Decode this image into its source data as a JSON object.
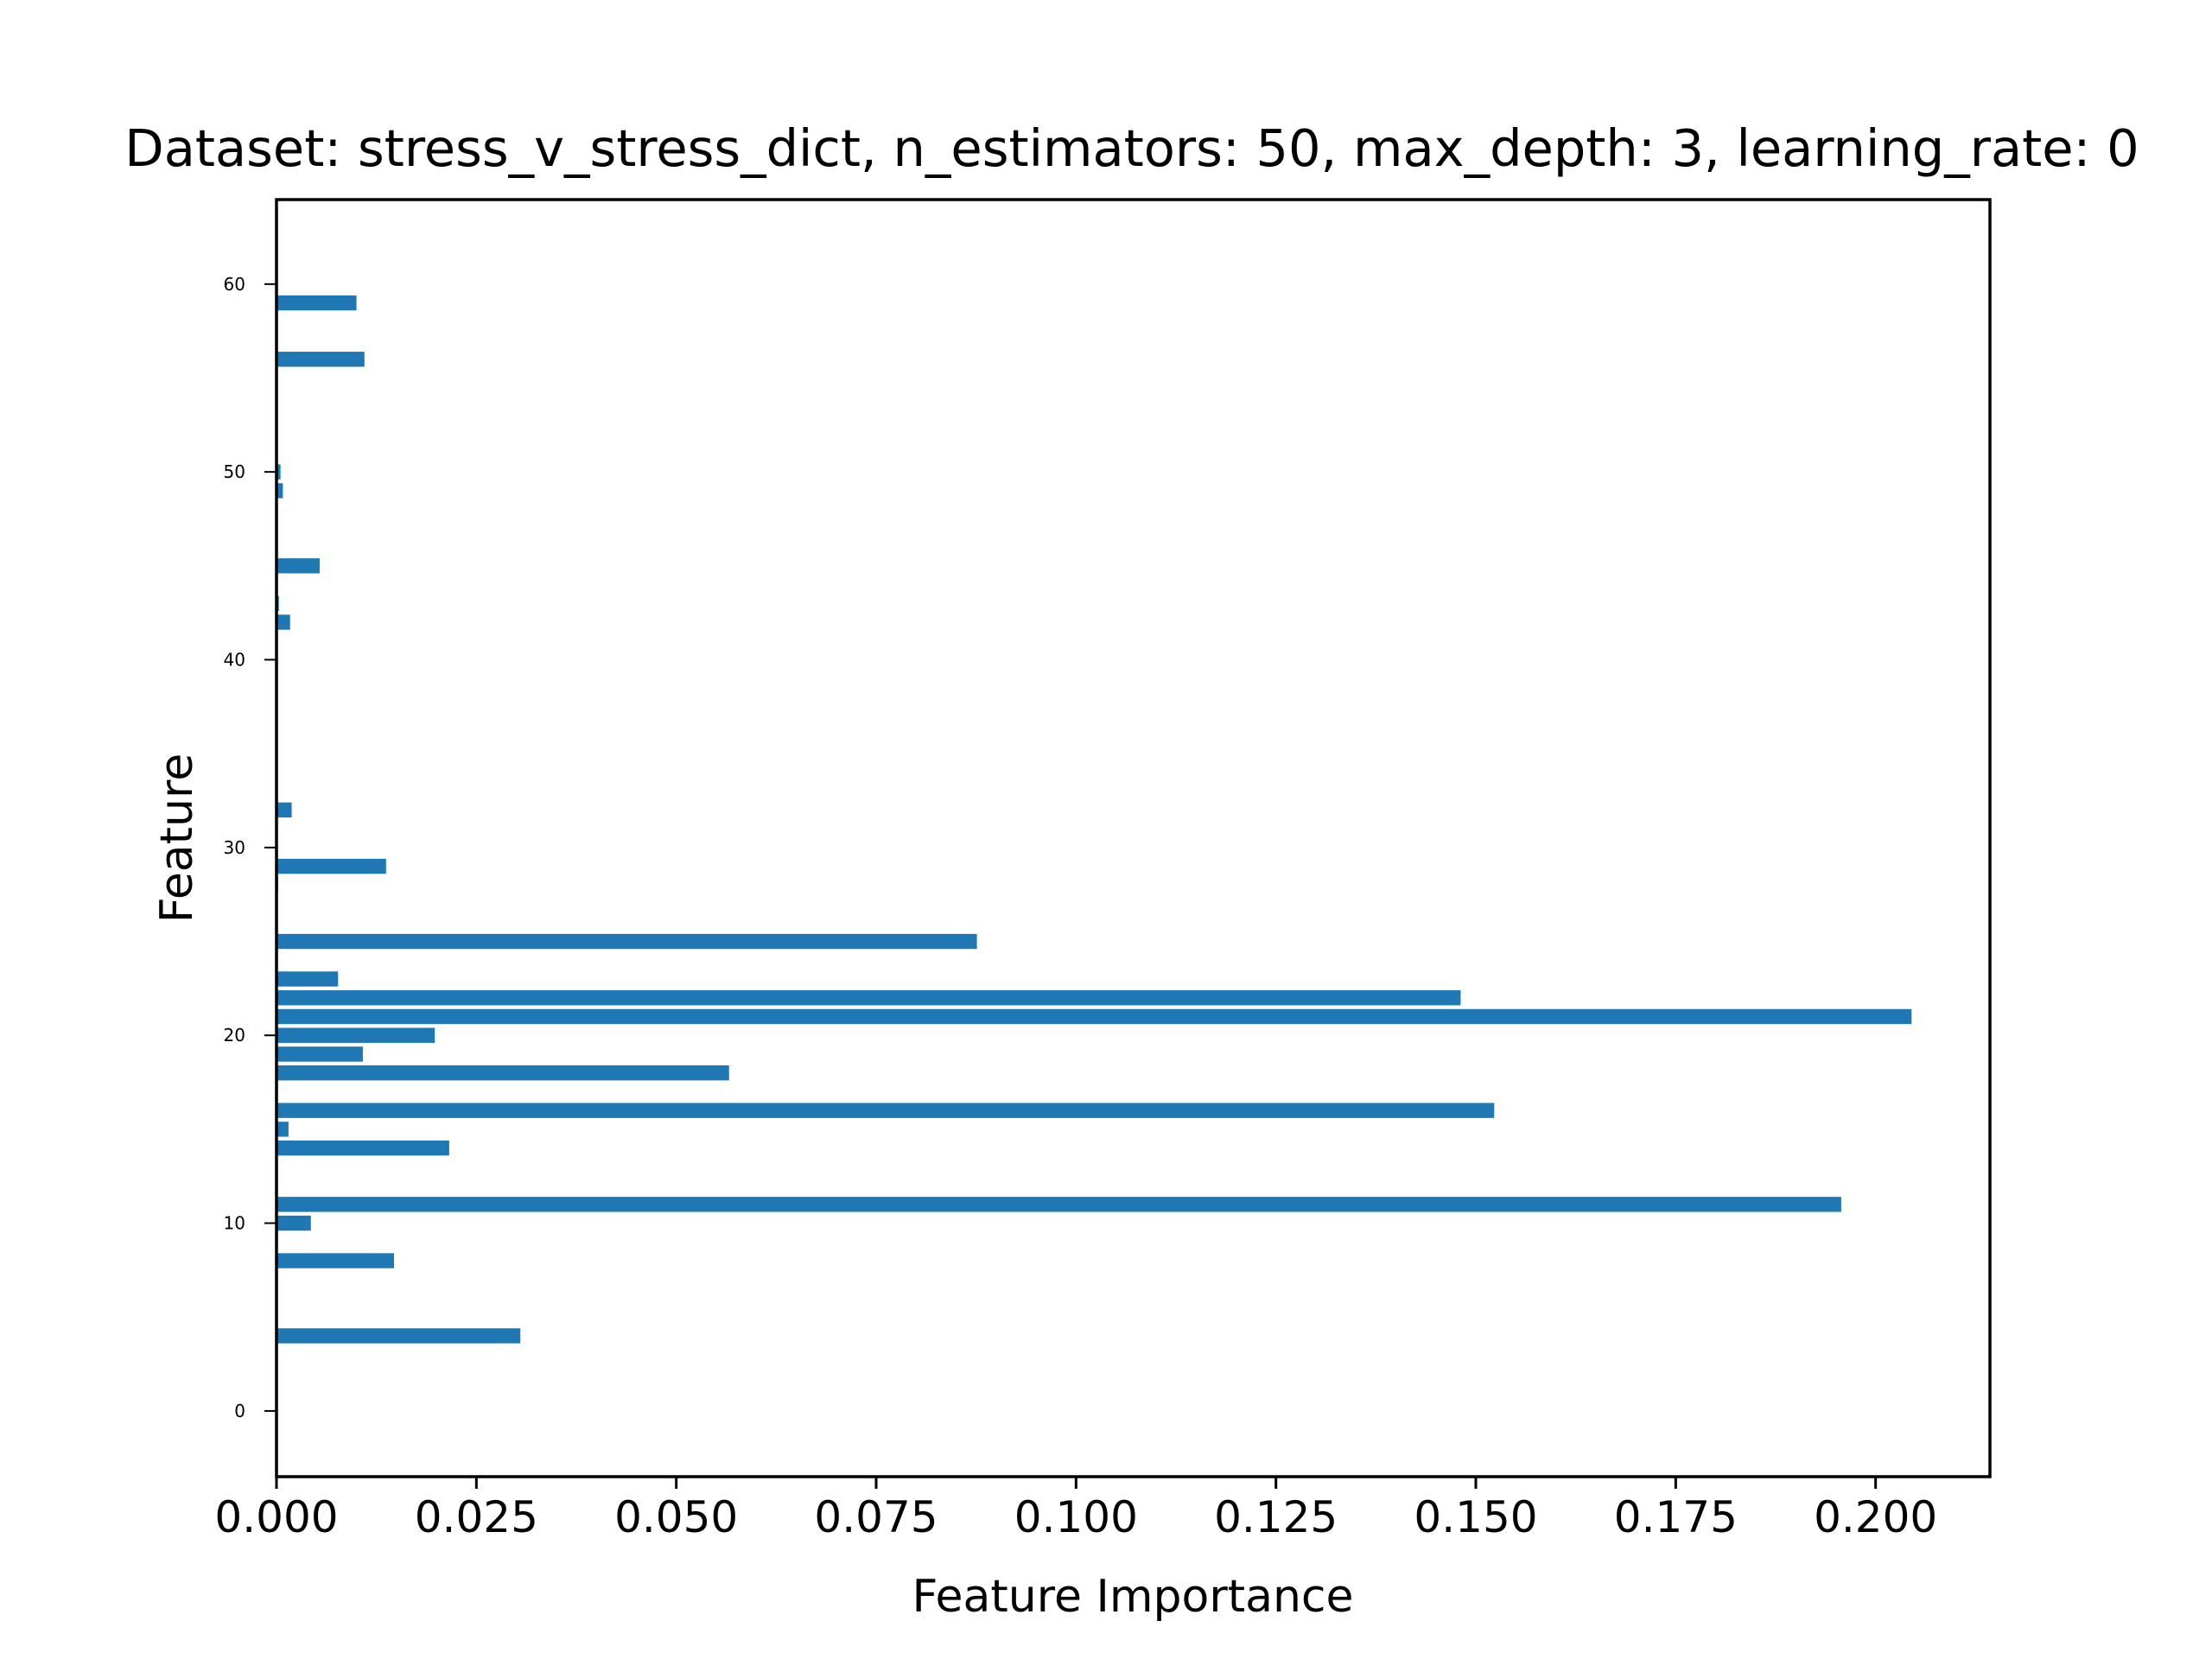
{
  "chart_data": {
    "type": "bar",
    "orientation": "horizontal",
    "title": "Dataset: stress_v_stress_dict, n_estimators: 50, max_depth: 3, learning_rate: 0",
    "xlabel": "Feature Importance",
    "ylabel": "Feature",
    "xlim": [
      0,
      0.2143
    ],
    "ylim": [
      -3.5,
      64.5
    ],
    "x_ticks": [
      0.0,
      0.025,
      0.05,
      0.075,
      0.1,
      0.125,
      0.15,
      0.175,
      0.2
    ],
    "x_tick_labels": [
      "0.000",
      "0.025",
      "0.050",
      "0.075",
      "0.100",
      "0.125",
      "0.150",
      "0.175",
      "0.200"
    ],
    "y_ticks": [
      0,
      10,
      20,
      30,
      40,
      50,
      60
    ],
    "y_tick_labels": [
      "0",
      "10",
      "20",
      "30",
      "40",
      "50",
      "60"
    ],
    "grid": false,
    "bar_color": "#1f77b4",
    "features": [
      4,
      8,
      10,
      11,
      14,
      15,
      16,
      18,
      19,
      20,
      21,
      22,
      23,
      25,
      28,
      29,
      32,
      42,
      43,
      45,
      49,
      50,
      56,
      59
    ],
    "values": [
      0.0305,
      0.0147,
      0.0043,
      0.1957,
      0.0216,
      0.0015,
      0.1523,
      0.0566,
      0.0108,
      0.0198,
      0.2045,
      0.1481,
      0.0077,
      0.0876,
      0.0002,
      0.0137,
      0.0019,
      0.0017,
      0.0003,
      0.0054,
      0.0008,
      0.0005,
      0.011,
      0.01
    ]
  }
}
